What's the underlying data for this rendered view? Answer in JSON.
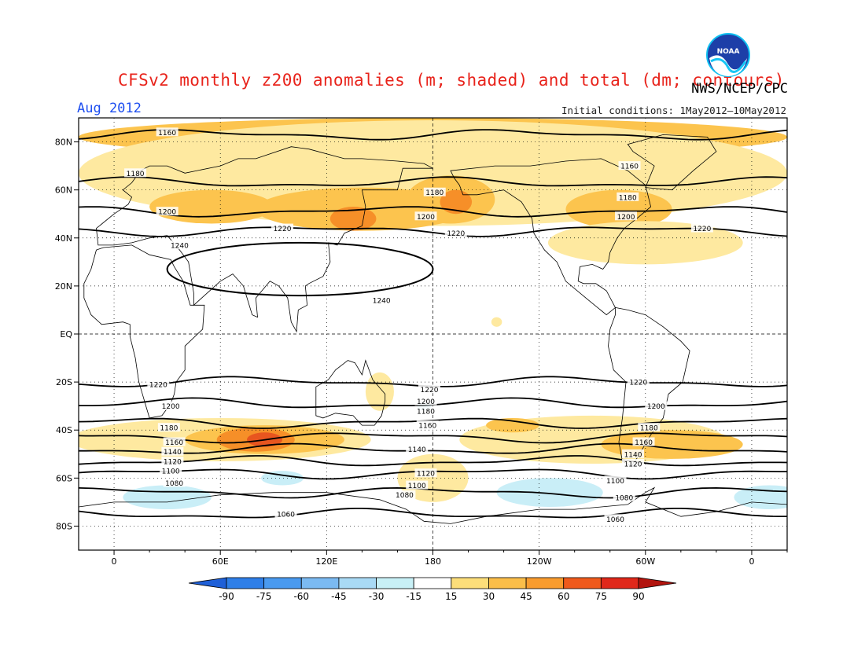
{
  "header": {
    "title": "CFSv2 monthly z200 anomalies (m; shaded) and total (dm; contours)",
    "agency": "NWS/NCEP/CPC",
    "period": "Aug 2012",
    "initial_conditions": "Initial conditions: 1May2012–10May2012",
    "logo_text": "NOAA"
  },
  "map": {
    "projection": "cylindrical-equidistant",
    "lat_labels": [
      "80N",
      "60N",
      "40N",
      "20N",
      "EQ",
      "20S",
      "40S",
      "60S",
      "80S"
    ],
    "lat_values": [
      80,
      60,
      40,
      20,
      0,
      -20,
      -40,
      -60,
      -80
    ],
    "lon_labels": [
      "0",
      "60E",
      "120E",
      "180",
      "120W",
      "60W",
      "0"
    ],
    "lon_values": [
      0,
      60,
      120,
      180,
      240,
      300,
      360
    ],
    "lon_range": [
      -20,
      380
    ],
    "lat_range": [
      -90,
      90
    ],
    "grid": "dotted, every 60 deg lon / 20 deg lat; dashed equator and 180 meridian",
    "contours": [
      {
        "label": "1160",
        "lat": 83
      },
      {
        "label": "1180",
        "lat": 63
      },
      {
        "label": "1200",
        "lat": 51
      },
      {
        "label": "1220",
        "lat": 43
      },
      {
        "label": "1220",
        "lat": -20
      },
      {
        "label": "1200",
        "lat": -29
      },
      {
        "label": "1180",
        "lat": -37
      },
      {
        "label": "1160",
        "lat": -43
      },
      {
        "label": "1140",
        "lat": -48
      },
      {
        "label": "1120",
        "lat": -53
      },
      {
        "label": "1100",
        "lat": -58
      },
      {
        "label": "1080",
        "lat": -66
      },
      {
        "label": "1060",
        "lat": -75
      }
    ],
    "closed_high": {
      "label": "1240",
      "center_lon": 105,
      "center_lat": 27
    },
    "contour_label_spots": [
      {
        "label": "1160",
        "lon": 30,
        "lat": 84
      },
      {
        "label": "1180",
        "lon": 12,
        "lat": 67
      },
      {
        "label": "1200",
        "lon": 30,
        "lat": 51
      },
      {
        "label": "1220",
        "lon": 95,
        "lat": 44
      },
      {
        "label": "1240",
        "lon": 37,
        "lat": 37
      },
      {
        "label": "1240",
        "lon": 151,
        "lat": 14
      },
      {
        "label": "1180",
        "lon": 181,
        "lat": 59
      },
      {
        "label": "1200",
        "lon": 176,
        "lat": 49
      },
      {
        "label": "1220",
        "lon": 193,
        "lat": 42
      },
      {
        "label": "1160",
        "lon": 291,
        "lat": 70
      },
      {
        "label": "1180",
        "lon": 290,
        "lat": 57
      },
      {
        "label": "1200",
        "lon": 289,
        "lat": 49
      },
      {
        "label": "1220",
        "lon": 332,
        "lat": 44
      },
      {
        "label": "1220",
        "lon": 25,
        "lat": -21
      },
      {
        "label": "1200",
        "lon": 32,
        "lat": -30
      },
      {
        "label": "1180",
        "lon": 31,
        "lat": -39
      },
      {
        "label": "1160",
        "lon": 34,
        "lat": -45
      },
      {
        "label": "1140",
        "lon": 33,
        "lat": -49
      },
      {
        "label": "1120",
        "lon": 33,
        "lat": -53
      },
      {
        "label": "1100",
        "lon": 32,
        "lat": -57
      },
      {
        "label": "1080",
        "lon": 34,
        "lat": -62
      },
      {
        "label": "1060",
        "lon": 97,
        "lat": -75
      },
      {
        "label": "1220",
        "lon": 178,
        "lat": -23
      },
      {
        "label": "1200",
        "lon": 176,
        "lat": -28
      },
      {
        "label": "1180",
        "lon": 176,
        "lat": -32
      },
      {
        "label": "1160",
        "lon": 177,
        "lat": -38
      },
      {
        "label": "1140",
        "lon": 171,
        "lat": -48
      },
      {
        "label": "1120",
        "lon": 176,
        "lat": -58
      },
      {
        "label": "1100",
        "lon": 171,
        "lat": -63
      },
      {
        "label": "1080",
        "lon": 164,
        "lat": -67
      },
      {
        "label": "1220",
        "lon": 296,
        "lat": -20
      },
      {
        "label": "1200",
        "lon": 306,
        "lat": -30
      },
      {
        "label": "1180",
        "lon": 302,
        "lat": -39
      },
      {
        "label": "1160",
        "lon": 299,
        "lat": -45
      },
      {
        "label": "1140",
        "lon": 293,
        "lat": -50
      },
      {
        "label": "1120",
        "lon": 293,
        "lat": -54
      },
      {
        "label": "1100",
        "lon": 283,
        "lat": -61
      },
      {
        "label": "1080",
        "lon": 288,
        "lat": -68
      },
      {
        "label": "1060",
        "lon": 283,
        "lat": -77
      }
    ],
    "anomaly_patches": [
      {
        "level": 30,
        "lon": 180,
        "lat": 82,
        "rlon": 200,
        "rlat": 8
      },
      {
        "level": 15,
        "lon": 180,
        "lat": 67,
        "rlon": 200,
        "rlat": 22
      },
      {
        "level": 30,
        "lon": 140,
        "lat": 52,
        "rlon": 60,
        "rlat": 9
      },
      {
        "level": 30,
        "lon": 55,
        "lat": 53,
        "rlon": 35,
        "rlat": 7
      },
      {
        "level": 30,
        "lon": 190,
        "lat": 56,
        "rlon": 25,
        "rlat": 10
      },
      {
        "level": 45,
        "lon": 135,
        "lat": 48,
        "rlon": 13,
        "rlat": 5
      },
      {
        "level": 45,
        "lon": 193,
        "lat": 55,
        "rlon": 9,
        "rlat": 5
      },
      {
        "level": 30,
        "lon": 285,
        "lat": 52,
        "rlon": 30,
        "rlat": 8
      },
      {
        "level": 15,
        "lon": 300,
        "lat": 38,
        "rlon": 55,
        "rlat": 9
      },
      {
        "level": 15,
        "lon": 150,
        "lat": -24,
        "rlon": 8,
        "rlat": 8
      },
      {
        "level": 15,
        "lon": 60,
        "lat": -44,
        "rlon": 85,
        "rlat": 9
      },
      {
        "level": 15,
        "lon": 180,
        "lat": -60,
        "rlon": 20,
        "rlat": 10
      },
      {
        "level": 15,
        "lon": 270,
        "lat": -44,
        "rlon": 75,
        "rlat": 10
      },
      {
        "level": 30,
        "lon": 85,
        "lat": -44,
        "rlon": 45,
        "rlat": 6
      },
      {
        "level": 30,
        "lon": 315,
        "lat": -46,
        "rlon": 40,
        "rlat": 6
      },
      {
        "level": 45,
        "lon": 80,
        "lat": -44,
        "rlon": 22,
        "rlat": 5
      },
      {
        "level": 60,
        "lon": 85,
        "lat": -44,
        "rlon": 10,
        "rlat": 3
      },
      {
        "level": 30,
        "lon": 225,
        "lat": -38,
        "rlon": 15,
        "rlat": 3
      },
      {
        "level": 15,
        "lon": 216,
        "lat": 5,
        "rlon": 3,
        "rlat": 2
      },
      {
        "level": -15,
        "lon": 30,
        "lat": -68,
        "rlon": 25,
        "rlat": 5
      },
      {
        "level": -15,
        "lon": 95,
        "lat": -60,
        "rlon": 12,
        "rlat": 3
      },
      {
        "level": -15,
        "lon": 246,
        "lat": -66,
        "rlon": 30,
        "rlat": 6
      },
      {
        "level": -15,
        "lon": 370,
        "lat": -68,
        "rlon": 20,
        "rlat": 5
      },
      {
        "level": -15,
        "lon": 175,
        "lat": -30,
        "rlon": 4,
        "rlat": 2
      }
    ],
    "land_outlines": [
      {
        "name": "north-america",
        "pts": [
          [
            190,
            68
          ],
          [
            215,
            70
          ],
          [
            235,
            70
          ],
          [
            255,
            72
          ],
          [
            275,
            73
          ],
          [
            290,
            68
          ],
          [
            300,
            62
          ],
          [
            303,
            53
          ],
          [
            295,
            48
          ],
          [
            288,
            44
          ],
          [
            284,
            40
          ],
          [
            280,
            34
          ],
          [
            279,
            30
          ],
          [
            276,
            27
          ],
          [
            270,
            29
          ],
          [
            263,
            28
          ],
          [
            262,
            22
          ],
          [
            265,
            21
          ],
          [
            272,
            21
          ],
          [
            278,
            18
          ],
          [
            283,
            11
          ],
          [
            278,
            8
          ],
          [
            268,
            14
          ],
          [
            255,
            22
          ],
          [
            250,
            30
          ],
          [
            243,
            35
          ],
          [
            237,
            42
          ],
          [
            236,
            48
          ],
          [
            230,
            55
          ],
          [
            220,
            60
          ],
          [
            205,
            58
          ],
          [
            197,
            58
          ],
          [
            195,
            62
          ],
          [
            192,
            65
          ]
        ]
      },
      {
        "name": "greenland",
        "pts": [
          [
            300,
            61
          ],
          [
            315,
            60
          ],
          [
            327,
            68
          ],
          [
            340,
            76
          ],
          [
            335,
            82
          ],
          [
            310,
            83
          ],
          [
            290,
            79
          ],
          [
            293,
            76
          ],
          [
            305,
            70
          ]
        ]
      },
      {
        "name": "south-america",
        "pts": [
          [
            283,
            11
          ],
          [
            290,
            10
          ],
          [
            300,
            8
          ],
          [
            310,
            3
          ],
          [
            320,
            -3
          ],
          [
            325,
            -7
          ],
          [
            321,
            -20
          ],
          [
            313,
            -25
          ],
          [
            310,
            -35
          ],
          [
            303,
            -42
          ],
          [
            295,
            -52
          ],
          [
            292,
            -55
          ],
          [
            287,
            -53
          ],
          [
            285,
            -45
          ],
          [
            287,
            -35
          ],
          [
            289,
            -20
          ],
          [
            282,
            -15
          ],
          [
            279,
            -5
          ],
          [
            280,
            2
          ],
          [
            283,
            8
          ]
        ]
      },
      {
        "name": "eurasia",
        "pts": [
          [
            0,
            50
          ],
          [
            -10,
            44
          ],
          [
            -9,
            37
          ],
          [
            0,
            37
          ],
          [
            10,
            38
          ],
          [
            20,
            40
          ],
          [
            30,
            41
          ],
          [
            36,
            36
          ],
          [
            42,
            30
          ],
          [
            45,
            17
          ],
          [
            45,
            12
          ],
          [
            60,
            22
          ],
          [
            67,
            25
          ],
          [
            73,
            20
          ],
          [
            78,
            8
          ],
          [
            81,
            7
          ],
          [
            80,
            15
          ],
          [
            88,
            22
          ],
          [
            93,
            20
          ],
          [
            98,
            15
          ],
          [
            100,
            5
          ],
          [
            103,
            1
          ],
          [
            104,
            10
          ],
          [
            109,
            12
          ],
          [
            108,
            20
          ],
          [
            110,
            21
          ],
          [
            118,
            24
          ],
          [
            122,
            30
          ],
          [
            121,
            38
          ],
          [
            126,
            37
          ],
          [
            130,
            42
          ],
          [
            140,
            45
          ],
          [
            142,
            53
          ],
          [
            140,
            60
          ],
          [
            160,
            60
          ],
          [
            163,
            69
          ],
          [
            180,
            69
          ],
          [
            175,
            71
          ],
          [
            160,
            72
          ],
          [
            140,
            73
          ],
          [
            130,
            73
          ],
          [
            110,
            77
          ],
          [
            100,
            78
          ],
          [
            80,
            73
          ],
          [
            70,
            73
          ],
          [
            60,
            70
          ],
          [
            40,
            67
          ],
          [
            30,
            70
          ],
          [
            20,
            70
          ],
          [
            15,
            68
          ],
          [
            10,
            63
          ],
          [
            5,
            60
          ],
          [
            10,
            57
          ],
          [
            8,
            54
          ]
        ]
      },
      {
        "name": "africa",
        "pts": [
          [
            -10,
            35
          ],
          [
            -6,
            36
          ],
          [
            10,
            37
          ],
          [
            20,
            33
          ],
          [
            32,
            31
          ],
          [
            34,
            28
          ],
          [
            39,
            22
          ],
          [
            43,
            12
          ],
          [
            51,
            12
          ],
          [
            50,
            2
          ],
          [
            40,
            -5
          ],
          [
            40,
            -15
          ],
          [
            35,
            -20
          ],
          [
            34,
            -25
          ],
          [
            32,
            -29
          ],
          [
            27,
            -34
          ],
          [
            20,
            -35
          ],
          [
            18,
            -30
          ],
          [
            14,
            -20
          ],
          [
            12,
            -10
          ],
          [
            9,
            -1
          ],
          [
            9,
            4
          ],
          [
            5,
            5
          ],
          [
            -7,
            4
          ],
          [
            -13,
            8
          ],
          [
            -17,
            15
          ],
          [
            -17,
            21
          ],
          [
            -13,
            27
          ]
        ]
      },
      {
        "name": "australia",
        "pts": [
          [
            114,
            -22
          ],
          [
            114,
            -34
          ],
          [
            118,
            -35
          ],
          [
            125,
            -33
          ],
          [
            135,
            -34
          ],
          [
            140,
            -38
          ],
          [
            147,
            -38
          ],
          [
            151,
            -34
          ],
          [
            153,
            -28
          ],
          [
            153,
            -25
          ],
          [
            146,
            -19
          ],
          [
            142,
            -11
          ],
          [
            140,
            -17
          ],
          [
            136,
            -12
          ],
          [
            132,
            -11
          ],
          [
            125,
            -15
          ],
          [
            121,
            -19
          ]
        ]
      },
      {
        "name": "antarctica",
        "pts": [
          [
            -20,
            -72
          ],
          [
            0,
            -70
          ],
          [
            30,
            -70
          ],
          [
            60,
            -67
          ],
          [
            90,
            -66
          ],
          [
            120,
            -66
          ],
          [
            150,
            -69
          ],
          [
            165,
            -73
          ],
          [
            175,
            -78
          ],
          [
            190,
            -79
          ],
          [
            210,
            -76
          ],
          [
            240,
            -73
          ],
          [
            260,
            -73
          ],
          [
            290,
            -71
          ],
          [
            300,
            -66
          ],
          [
            305,
            -64
          ],
          [
            300,
            -70
          ],
          [
            320,
            -76
          ],
          [
            340,
            -74
          ],
          [
            360,
            -70
          ],
          [
            380,
            -71
          ]
        ]
      }
    ]
  },
  "colorbar": {
    "tick_labels": [
      "-90",
      "-75",
      "-60",
      "-45",
      "-30",
      "-15",
      "15",
      "30",
      "45",
      "60",
      "75",
      "90"
    ],
    "colors": [
      "#1f60d8",
      "#2f7fe8",
      "#4a9aef",
      "#7bbaf2",
      "#a9daf5",
      "#c8f0f6",
      "#ffffff",
      "#fcde7a",
      "#fbbe49",
      "#f99c2e",
      "#ef5a1c",
      "#e0281a",
      "#b2140e"
    ]
  },
  "anomaly_colors": {
    "-15": "#c9eef7",
    "15": "#fee9a0",
    "30": "#fcc44e",
    "45": "#f68f28",
    "60": "#e8551f"
  }
}
